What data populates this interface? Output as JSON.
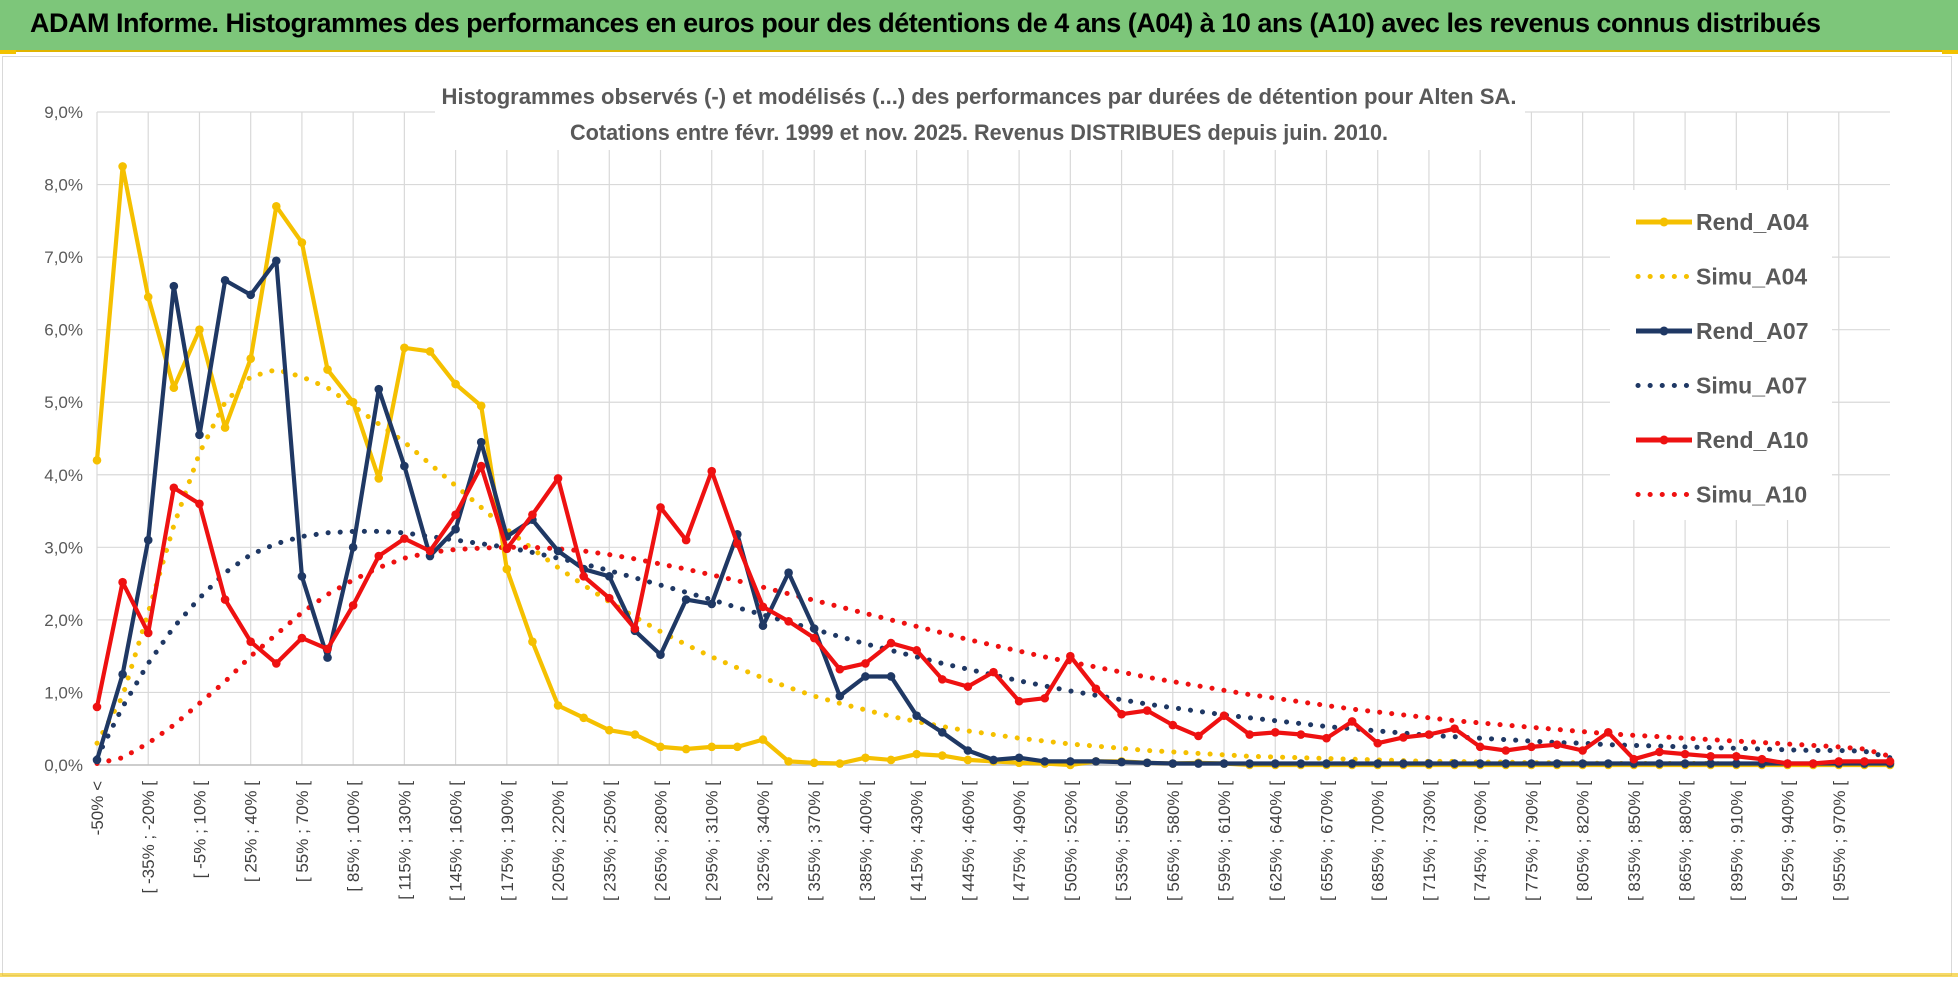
{
  "banner": {
    "title": "ADAM Informe. Histogrammes des performances en euros pour des détentions de 4 ans (A04) à 10 ans (A10) avec les revenus connus distribués"
  },
  "colors": {
    "banner_bg": "#7dc67a",
    "accent": "#f2c200",
    "a04": "#f5c000",
    "a07": "#1f3864",
    "a10": "#ee1111",
    "grid": "#d9d9d9"
  },
  "chart_data": {
    "type": "line",
    "title": "Histogrammes observés (-) et modélisés (...) des performances par durées de détention pour Alten SA.",
    "subtitle": "Cotations entre févr. 1999 et nov. 2025. Revenus DISTRIBUES depuis juin. 2010.",
    "ylim": [
      0,
      9
    ],
    "y_ticks": [
      "0,0%",
      "1,0%",
      "2,0%",
      "3,0%",
      "4,0%",
      "5,0%",
      "6,0%",
      "7,0%",
      "8,0%",
      "9,0%"
    ],
    "category_labels": [
      "-50% <",
      "[ -35% ; -20% [",
      "[ -5% ; 10% [",
      "[ 25% ; 40% [",
      "[ 55% ; 70% [",
      "[ 85% ; 100% [",
      "[ 115% ; 130% [",
      "[ 145% ; 160% [",
      "[ 175% ; 190% [",
      "[ 205% ; 220% [",
      "[ 235% ; 250% [",
      "[ 265% ; 280% [",
      "[ 295% ; 310% [",
      "[ 325% ; 340% [",
      "[ 355% ; 370% [",
      "[ 385% ; 400% [",
      "[ 415% ; 430% [",
      "[ 445% ; 460% [",
      "[ 475% ; 490% [",
      "[ 505% ; 520% [",
      "[ 535% ; 550% [",
      "[ 565% ; 580% [",
      "[ 595% ; 610% [",
      "[ 625% ; 640% [",
      "[ 655% ; 670% [",
      "[ 685% ; 700% [",
      "[ 715% ; 730% [",
      "[ 745% ; 760% [",
      "[ 775% ; 790% [",
      "[ 805% ; 820% [",
      "[ 835% ; 850% [",
      "[ 865% ; 880% [",
      "[ 895% ; 910% [",
      "[ 925% ; 940% [",
      "[ 955% ; 970% ["
    ],
    "n_points": 71,
    "legend_position": "right",
    "series": [
      {
        "name": "Rend_A04",
        "style": "solid",
        "values": [
          4.2,
          8.25,
          6.45,
          5.2,
          6.0,
          4.65,
          5.6,
          7.7,
          7.2,
          5.45,
          5.0,
          3.95,
          5.75,
          5.7,
          5.25,
          4.95,
          2.7,
          1.7,
          0.82,
          0.65,
          0.48,
          0.42,
          0.25,
          0.22,
          0.25,
          0.25,
          0.35,
          0.05,
          0.03,
          0.02,
          0.1,
          0.07,
          0.15,
          0.13,
          0.07,
          0.05,
          0.03,
          0.02,
          0.0,
          0.05,
          0.05,
          0.03,
          0.02,
          0.03,
          0.02,
          0.0,
          0.0,
          0.0,
          0.0,
          0.0,
          0.0,
          0.0,
          0.0,
          0.0,
          0.0,
          0.0,
          0.0,
          0.0,
          0.0,
          0.0,
          0.0,
          0.0,
          0.0,
          0.0,
          0.0,
          0.0,
          0.0,
          0.0,
          0.0,
          0.0,
          0.0
        ]
      },
      {
        "name": "Simu_A04",
        "style": "dotted",
        "values": [
          0.3,
          0.95,
          2.1,
          3.3,
          4.3,
          5.0,
          5.35,
          5.45,
          5.35,
          5.2,
          4.95,
          4.7,
          4.45,
          4.15,
          3.85,
          3.55,
          3.25,
          2.98,
          2.72,
          2.48,
          2.25,
          2.04,
          1.84,
          1.66,
          1.49,
          1.34,
          1.2,
          1.07,
          0.95,
          0.85,
          0.76,
          0.67,
          0.6,
          0.53,
          0.47,
          0.42,
          0.37,
          0.33,
          0.29,
          0.26,
          0.23,
          0.2,
          0.18,
          0.16,
          0.14,
          0.12,
          0.11,
          0.1,
          0.09,
          0.08,
          0.07,
          0.06,
          0.05,
          0.05,
          0.04,
          0.04,
          0.03,
          0.03,
          0.03,
          0.02,
          0.02,
          0.02,
          0.02,
          0.02,
          0.01,
          0.01,
          0.01,
          0.01,
          0.01,
          0.01,
          0.01
        ]
      },
      {
        "name": "Rend_A07",
        "style": "solid",
        "values": [
          0.07,
          1.25,
          3.1,
          6.6,
          4.55,
          6.68,
          6.48,
          6.95,
          2.6,
          1.48,
          3.0,
          5.18,
          4.12,
          2.88,
          3.25,
          4.45,
          3.15,
          3.38,
          2.95,
          2.7,
          2.6,
          1.85,
          1.52,
          2.28,
          2.22,
          3.18,
          1.92,
          2.65,
          1.88,
          0.95,
          1.22,
          1.22,
          0.68,
          0.45,
          0.2,
          0.07,
          0.1,
          0.05,
          0.05,
          0.05,
          0.04,
          0.03,
          0.02,
          0.02,
          0.02,
          0.02,
          0.02,
          0.02,
          0.02,
          0.02,
          0.02,
          0.02,
          0.02,
          0.02,
          0.02,
          0.02,
          0.02,
          0.02,
          0.02,
          0.02,
          0.02,
          0.02,
          0.02,
          0.02,
          0.02,
          0.02,
          0.02,
          0.02,
          0.02,
          0.02,
          0.02
        ]
      },
      {
        "name": "Simu_A07",
        "style": "dotted",
        "values": [
          0.1,
          0.8,
          1.4,
          1.9,
          2.3,
          2.65,
          2.9,
          3.05,
          3.15,
          3.2,
          3.22,
          3.22,
          3.2,
          3.15,
          3.1,
          3.05,
          3.0,
          2.93,
          2.85,
          2.77,
          2.68,
          2.58,
          2.48,
          2.38,
          2.28,
          2.17,
          2.07,
          1.97,
          1.87,
          1.77,
          1.67,
          1.58,
          1.49,
          1.4,
          1.32,
          1.24,
          1.16,
          1.09,
          1.02,
          0.96,
          0.9,
          0.84,
          0.79,
          0.74,
          0.69,
          0.65,
          0.61,
          0.57,
          0.53,
          0.5,
          0.47,
          0.44,
          0.41,
          0.39,
          0.37,
          0.35,
          0.33,
          0.31,
          0.3,
          0.28,
          0.27,
          0.26,
          0.25,
          0.24,
          0.23,
          0.22,
          0.21,
          0.2,
          0.2,
          0.19,
          0.1
        ]
      },
      {
        "name": "Rend_A10",
        "style": "solid",
        "values": [
          0.8,
          2.52,
          1.82,
          3.82,
          3.6,
          2.28,
          1.7,
          1.4,
          1.75,
          1.6,
          2.2,
          2.88,
          3.12,
          2.95,
          3.45,
          4.12,
          2.98,
          3.45,
          3.95,
          2.6,
          2.3,
          1.88,
          3.55,
          3.1,
          4.05,
          3.05,
          2.18,
          1.98,
          1.75,
          1.32,
          1.4,
          1.68,
          1.58,
          1.18,
          1.08,
          1.28,
          0.88,
          0.92,
          1.5,
          1.05,
          0.7,
          0.75,
          0.55,
          0.4,
          0.68,
          0.42,
          0.45,
          0.42,
          0.37,
          0.6,
          0.3,
          0.38,
          0.42,
          0.5,
          0.25,
          0.2,
          0.25,
          0.28,
          0.2,
          0.45,
          0.08,
          0.18,
          0.15,
          0.12,
          0.12,
          0.08,
          0.02,
          0.02,
          0.05,
          0.05,
          0.05
        ]
      },
      {
        "name": "Simu_A10",
        "style": "dotted",
        "values": [
          0.02,
          0.1,
          0.3,
          0.55,
          0.85,
          1.15,
          1.5,
          1.8,
          2.1,
          2.35,
          2.55,
          2.72,
          2.85,
          2.93,
          2.97,
          2.99,
          3.0,
          3.0,
          2.98,
          2.95,
          2.9,
          2.84,
          2.77,
          2.7,
          2.62,
          2.54,
          2.45,
          2.36,
          2.27,
          2.18,
          2.09,
          2.0,
          1.91,
          1.82,
          1.73,
          1.65,
          1.57,
          1.49,
          1.42,
          1.35,
          1.28,
          1.21,
          1.15,
          1.09,
          1.03,
          0.97,
          0.92,
          0.87,
          0.82,
          0.77,
          0.73,
          0.69,
          0.65,
          0.61,
          0.58,
          0.55,
          0.52,
          0.49,
          0.46,
          0.43,
          0.41,
          0.39,
          0.37,
          0.35,
          0.33,
          0.31,
          0.29,
          0.27,
          0.25,
          0.22,
          0.12
        ]
      }
    ]
  }
}
